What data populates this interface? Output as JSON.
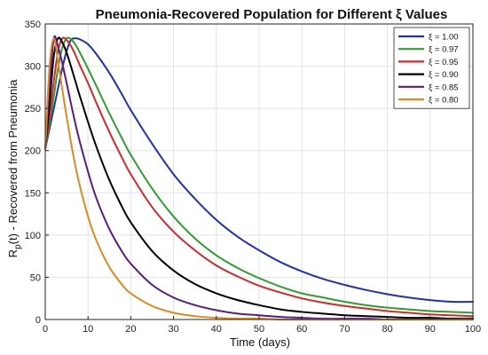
{
  "chart_data": {
    "type": "line",
    "title": "Pneumonia-Recovered Population for Different ξ Values",
    "xlabel": "Time (days)",
    "ylabel_main": "R",
    "ylabel_sub": "p",
    "ylabel_rest": "(t) - Recovered from Pneumonia",
    "xlim": [
      0,
      100
    ],
    "ylim": [
      0,
      350
    ],
    "xticks": [
      "0",
      "10",
      "20",
      "30",
      "40",
      "50",
      "60",
      "70",
      "80",
      "90",
      "100"
    ],
    "yticks": [
      "0",
      "50",
      "100",
      "150",
      "200",
      "250",
      "300",
      "350"
    ],
    "grid": true,
    "legend_position": "top-right",
    "x": [
      0,
      1,
      2,
      3,
      4,
      5,
      6,
      7,
      8,
      10,
      12,
      15,
      18,
      20,
      25,
      30,
      35,
      40,
      45,
      50,
      55,
      60,
      65,
      70,
      75,
      80,
      85,
      90,
      95,
      100
    ],
    "series": [
      {
        "name": "ξ = 1.00",
        "color": "#1f2fbf",
        "values": [
          202,
          226,
          250,
          274,
          298,
          318,
          331,
          333,
          332,
          326,
          314,
          292,
          266,
          248,
          208,
          172,
          143,
          118,
          98,
          82,
          68,
          57,
          48,
          41,
          35,
          30,
          26,
          23,
          21,
          21
        ]
      },
      {
        "name": "ξ = 0.97",
        "color": "#2ca02c",
        "values": [
          202,
          232,
          264,
          298,
          322,
          333,
          332,
          326,
          317,
          297,
          276,
          244,
          214,
          195,
          155,
          122,
          96,
          76,
          61,
          49,
          39,
          31,
          26,
          21,
          17,
          14,
          12,
          10,
          9,
          8
        ]
      },
      {
        "name": "ξ = 0.95",
        "color": "#d62728",
        "values": [
          202,
          240,
          282,
          318,
          333,
          331,
          324,
          314,
          302,
          280,
          256,
          222,
          191,
          172,
          133,
          104,
          82,
          64,
          51,
          40,
          32,
          25,
          20,
          16,
          13,
          10,
          8,
          6,
          5,
          4
        ]
      },
      {
        "name": "ξ = 0.90",
        "color": "#000000",
        "values": [
          202,
          255,
          312,
          333,
          328,
          316,
          300,
          283,
          266,
          234,
          204,
          165,
          133,
          115,
          81,
          58,
          42,
          31,
          23,
          17,
          12,
          9,
          7,
          5,
          4,
          3,
          2,
          2,
          1,
          1
        ]
      },
      {
        "name": "ξ = 0.85",
        "color": "#5a1a8a",
        "values": [
          202,
          275,
          333,
          323,
          303,
          280,
          256,
          233,
          212,
          175,
          143,
          107,
          80,
          66,
          41,
          26,
          17,
          11,
          7,
          5,
          3,
          2,
          1,
          1,
          1,
          0,
          0,
          0,
          0,
          0
        ]
      },
      {
        "name": "ξ = 0.80",
        "color": "#e08a1e",
        "values": [
          202,
          300,
          333,
          305,
          272,
          240,
          210,
          183,
          160,
          122,
          93,
          62,
          41,
          31,
          16,
          8,
          4,
          2,
          1,
          1,
          0,
          0,
          0,
          0,
          0,
          0,
          0,
          0,
          0,
          0
        ]
      }
    ]
  }
}
